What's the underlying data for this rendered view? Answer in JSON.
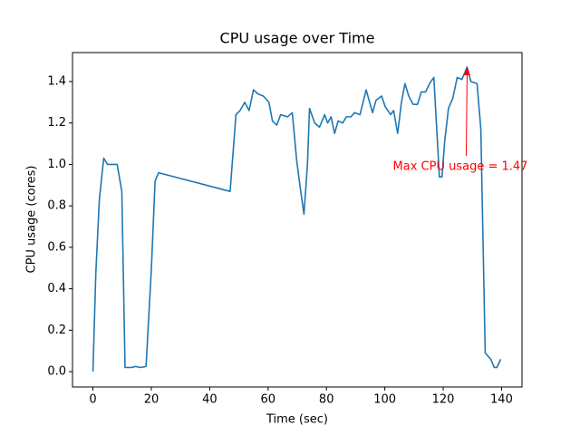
{
  "chart_data": {
    "type": "line",
    "title": "CPU usage over Time",
    "xlabel": "Time (sec)",
    "ylabel": "CPU usage (cores)",
    "color": "#1f77b4",
    "x": [
      0,
      1,
      2.2,
      3.7,
      5,
      8.3,
      9.9,
      11,
      13.3,
      14.5,
      16.4,
      18.2,
      20,
      21.3,
      22.5,
      47,
      49,
      50.4,
      52,
      53.5,
      55,
      56.6,
      58.4,
      60.3,
      61.5,
      63,
      64.3,
      66.7,
      68.3,
      69.8,
      71,
      72.3,
      73.5,
      74.2,
      76,
      77.6,
      79.4,
      80.4,
      81.6,
      82.8,
      84,
      85.6,
      86.8,
      88.4,
      89.6,
      91.5,
      93.6,
      95.8,
      97,
      98.9,
      100.1,
      102,
      103,
      104.4,
      105.7,
      106.9,
      108.2,
      109.7,
      111.2,
      112.5,
      114,
      115.3,
      116.8,
      118.7,
      119.6,
      120.5,
      121.8,
      123.3,
      124.8,
      126.4,
      128.2,
      129.5,
      131.6,
      132.9,
      134.4,
      136.3,
      137.5,
      138.4,
      139.7
    ],
    "values": [
      0,
      0.48,
      0.83,
      1.03,
      1.0,
      1.0,
      0.87,
      0.02,
      0.02,
      0.025,
      0.02,
      0.025,
      0.49,
      0.92,
      0.96,
      0.87,
      1.24,
      1.26,
      1.3,
      1.26,
      1.36,
      1.34,
      1.33,
      1.3,
      1.21,
      1.19,
      1.24,
      1.23,
      1.25,
      1.02,
      0.89,
      0.76,
      1.0,
      1.27,
      1.2,
      1.18,
      1.24,
      1.2,
      1.23,
      1.15,
      1.21,
      1.2,
      1.23,
      1.23,
      1.25,
      1.24,
      1.36,
      1.25,
      1.31,
      1.33,
      1.28,
      1.24,
      1.26,
      1.15,
      1.3,
      1.39,
      1.33,
      1.29,
      1.29,
      1.35,
      1.35,
      1.39,
      1.42,
      0.94,
      0.94,
      1.11,
      1.27,
      1.32,
      1.42,
      1.41,
      1.47,
      1.4,
      1.39,
      1.17,
      0.09,
      0.06,
      0.02,
      0.02,
      0.06
    ],
    "xlim": [
      -7,
      147
    ],
    "xticks": [
      0,
      20,
      40,
      60,
      80,
      100,
      120,
      140
    ],
    "ylim": [
      -0.074,
      1.54
    ],
    "yticks": [
      {
        "value": 0,
        "label": "0.0"
      },
      0.2,
      0.4,
      0.6,
      0.8,
      {
        "value": 1,
        "label": "1.0"
      },
      1.2,
      1.4
    ],
    "annotation": {
      "text": "Max CPU usage = 1.47",
      "color": "red"
    }
  }
}
